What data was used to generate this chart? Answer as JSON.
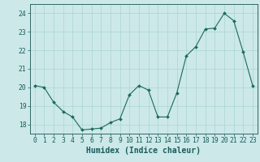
{
  "x": [
    0,
    1,
    2,
    3,
    4,
    5,
    6,
    7,
    8,
    9,
    10,
    11,
    12,
    13,
    14,
    15,
    16,
    17,
    18,
    19,
    20,
    21,
    22,
    23
  ],
  "y": [
    20.1,
    20.0,
    19.2,
    18.7,
    18.4,
    17.7,
    17.75,
    17.8,
    18.1,
    18.3,
    19.6,
    20.1,
    19.85,
    18.4,
    18.4,
    19.7,
    21.7,
    22.2,
    23.15,
    23.2,
    24.0,
    23.6,
    21.9,
    20.1
  ],
  "xlabel": "Humidex (Indice chaleur)",
  "ylabel": "",
  "ylim": [
    17.5,
    24.5
  ],
  "xlim": [
    -0.5,
    23.5
  ],
  "yticks": [
    18,
    19,
    20,
    21,
    22,
    23,
    24
  ],
  "xticks": [
    0,
    1,
    2,
    3,
    4,
    5,
    6,
    7,
    8,
    9,
    10,
    11,
    12,
    13,
    14,
    15,
    16,
    17,
    18,
    19,
    20,
    21,
    22,
    23
  ],
  "line_color": "#1a6b5a",
  "marker_color": "#1a6b5a",
  "bg_color": "#cce8e8",
  "grid_color": "#aad4d4",
  "axis_color": "#336666",
  "label_color": "#1a5c5c",
  "font_size_ticks": 5.8,
  "font_size_xlabel": 7.0
}
